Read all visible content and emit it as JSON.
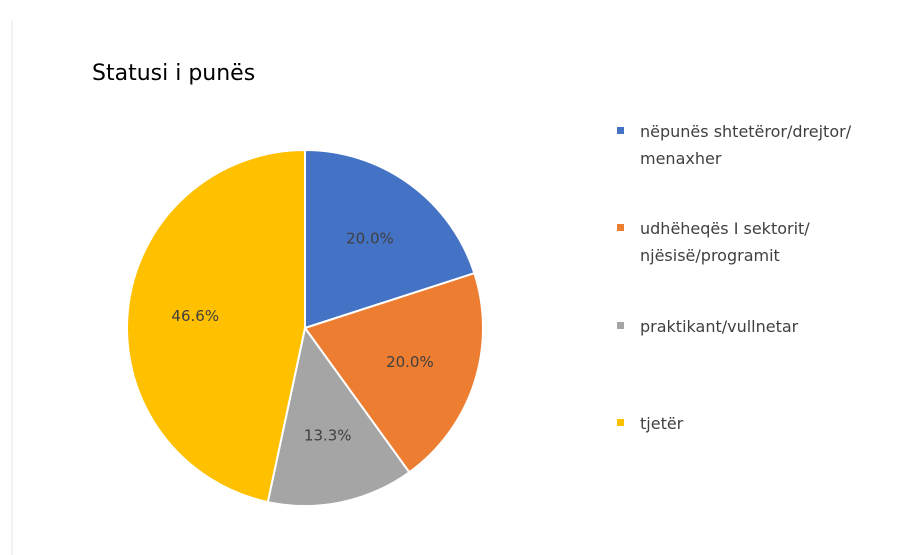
{
  "chart_data": {
    "type": "pie",
    "title": "Statusi i punës",
    "categories": [
      "nëpunës shtetëror/drejtor/\nmenaxher",
      "udhëheqës I sektorit/\nnjësisë/programit",
      "praktikant/vullnetar",
      "tjetër"
    ],
    "values": [
      20,
      20,
      13.3,
      46.6
    ],
    "value_labels": [
      "20.0%",
      "20.0%",
      "13.3%",
      "46.6%"
    ],
    "colors": [
      "#4472c4",
      "#ed7d31",
      "#a5a5a5",
      "#ffc000"
    ],
    "legend": "right"
  }
}
